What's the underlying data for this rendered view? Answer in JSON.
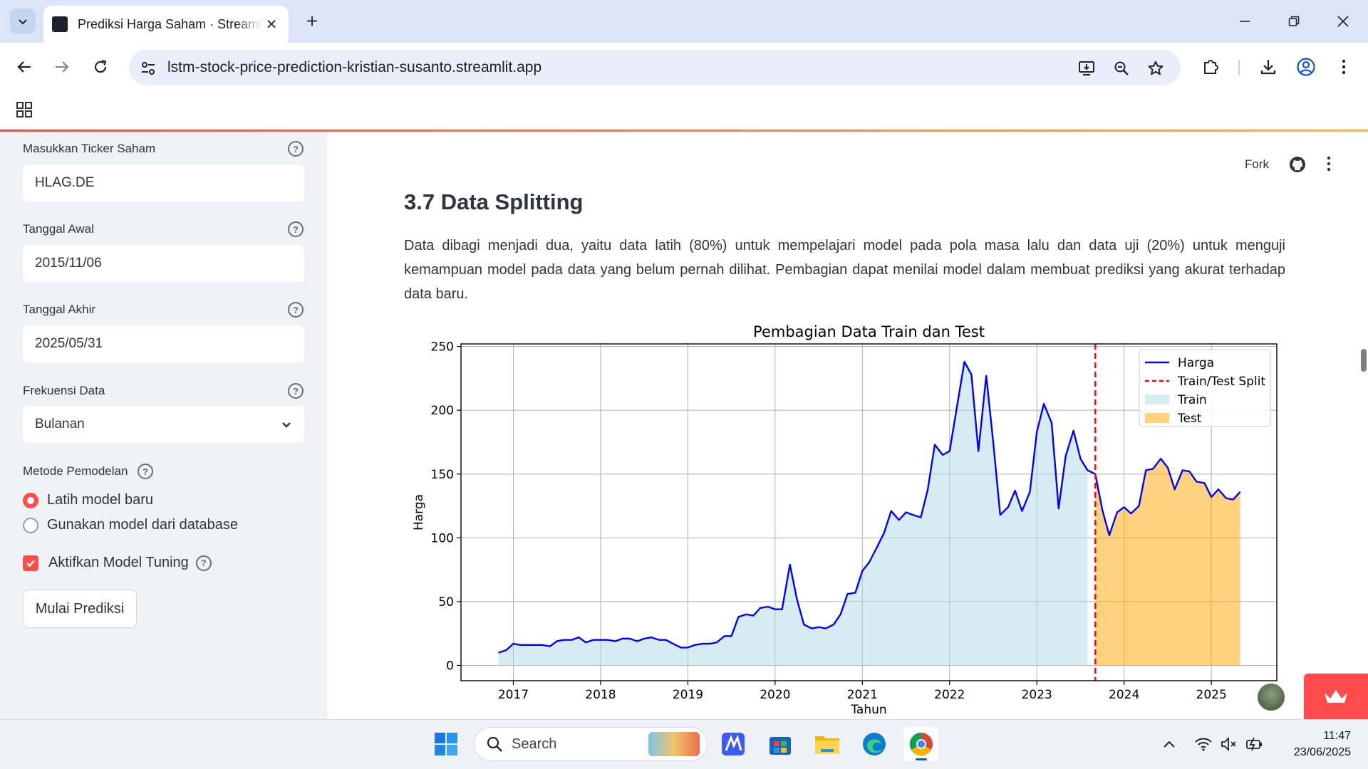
{
  "browser": {
    "tab_title": "Prediksi Harga Saham · Streamlit",
    "url": "lstm-stock-price-prediction-kristian-susanto.streamlit.app"
  },
  "sidebar": {
    "ticker_label": "Masukkan Ticker Saham",
    "ticker_value": "HLAG.DE",
    "start_label": "Tanggal Awal",
    "start_value": "2015/11/06",
    "end_label": "Tanggal Akhir",
    "end_value": "2025/05/31",
    "freq_label": "Frekuensi Data",
    "freq_value": "Bulanan",
    "method_label": "Metode Pemodelan",
    "method_options": [
      "Latih model baru",
      "Gunakan model dari database"
    ],
    "tuning_label": "Aktifkan Model Tuning",
    "submit_label": "Mulai Prediksi"
  },
  "header": {
    "fork_label": "Fork"
  },
  "main": {
    "heading": "3.7 Data Splitting",
    "paragraph": "Data dibagi menjadi dua, yaitu data latih (80%) untuk mempelajari model pada pola masa lalu dan data uji (20%) untuk menguji kemampuan model pada data yang belum pernah dilihat. Pembagian dapat menilai model dalam membuat prediksi yang akurat terhadap data baru."
  },
  "chart_data": {
    "type": "line",
    "title": "Pembagian Data Train dan Test",
    "xlabel": "Tahun",
    "ylabel": "Harga",
    "xlim": [
      2016.4,
      2025.75
    ],
    "ylim": [
      -12,
      252
    ],
    "xticks": [
      2017,
      2018,
      2019,
      2020,
      2021,
      2022,
      2023,
      2024,
      2025
    ],
    "yticks": [
      0,
      50,
      100,
      150,
      200,
      250
    ],
    "grid": true,
    "legend_position": "top-right",
    "legend": [
      "Harga",
      "Train/Test Split",
      "Train",
      "Test"
    ],
    "split_x": 2023.67,
    "colors": {
      "line": "#0000ff",
      "split": "#ff0000",
      "train": "#add8e6",
      "test": "#ffa500"
    },
    "series": [
      {
        "name": "Harga",
        "x": [
          2016.83,
          2016.92,
          2017.0,
          2017.08,
          2017.17,
          2017.25,
          2017.33,
          2017.42,
          2017.5,
          2017.58,
          2017.67,
          2017.75,
          2017.83,
          2017.92,
          2018.0,
          2018.08,
          2018.17,
          2018.25,
          2018.33,
          2018.42,
          2018.5,
          2018.58,
          2018.67,
          2018.75,
          2018.83,
          2018.92,
          2019.0,
          2019.08,
          2019.17,
          2019.25,
          2019.33,
          2019.42,
          2019.5,
          2019.58,
          2019.67,
          2019.75,
          2019.83,
          2019.92,
          2020.0,
          2020.08,
          2020.17,
          2020.25,
          2020.33,
          2020.42,
          2020.5,
          2020.58,
          2020.67,
          2020.75,
          2020.83,
          2020.92,
          2021.0,
          2021.08,
          2021.17,
          2021.25,
          2021.33,
          2021.42,
          2021.5,
          2021.58,
          2021.67,
          2021.75,
          2021.83,
          2021.92,
          2022.0,
          2022.08,
          2022.17,
          2022.25,
          2022.33,
          2022.42,
          2022.5,
          2022.58,
          2022.67,
          2022.75,
          2022.83,
          2022.92,
          2023.0,
          2023.08,
          2023.17,
          2023.25,
          2023.33,
          2023.42,
          2023.5,
          2023.58,
          2023.67,
          2023.75,
          2023.83,
          2023.92,
          2024.0,
          2024.08,
          2024.17,
          2024.25,
          2024.33,
          2024.42,
          2024.5,
          2024.58,
          2024.67,
          2024.75,
          2024.83,
          2024.92,
          2025.0,
          2025.08,
          2025.17,
          2025.25,
          2025.33
        ],
        "values": [
          10,
          12,
          17,
          16,
          16,
          16,
          16,
          15,
          19,
          20,
          20,
          22,
          18,
          20,
          20,
          20,
          19,
          21,
          21,
          19,
          21,
          22,
          20,
          20,
          17,
          14,
          14,
          16,
          17,
          17,
          18,
          23,
          23,
          38,
          40,
          39,
          45,
          46,
          44,
          44,
          79,
          52,
          32,
          29,
          30,
          29,
          32,
          40,
          56,
          57,
          74,
          81,
          93,
          104,
          121,
          114,
          120,
          118,
          116,
          138,
          173,
          165,
          168,
          201,
          238,
          228,
          168,
          227,
          175,
          118,
          124,
          137,
          121,
          136,
          183,
          205,
          190,
          123,
          164,
          184,
          162,
          153,
          150,
          122,
          102,
          120,
          124,
          119,
          125,
          153,
          154,
          162,
          155,
          138,
          153,
          152,
          144,
          143,
          132,
          138,
          131,
          130,
          136
        ]
      }
    ]
  },
  "taskbar": {
    "search_placeholder": "Search",
    "time": "11:47",
    "date": "23/06/2025"
  }
}
